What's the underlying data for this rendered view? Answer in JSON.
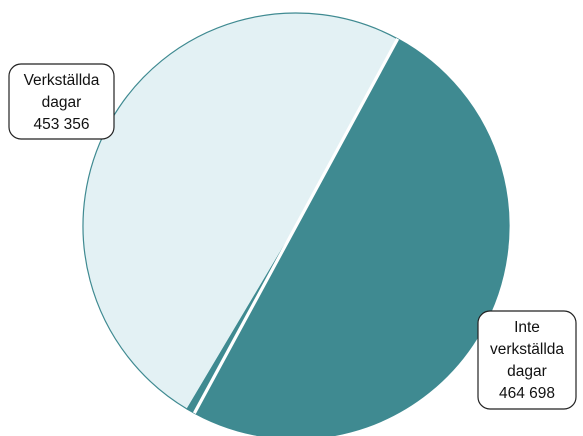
{
  "chart_data": {
    "type": "pie",
    "slices": [
      {
        "label_lines": [
          "Verkställda",
          "dagar"
        ],
        "value_text": "453 356",
        "value": 453356,
        "color": "#e3f1f4",
        "stroke": "#3f8a91"
      },
      {
        "label_lines": [
          "Inte",
          "verkställda",
          "dagar"
        ],
        "value_text": "464 698",
        "value": 464698,
        "color": "#3f8a91",
        "stroke": "#3f8a91"
      }
    ]
  }
}
